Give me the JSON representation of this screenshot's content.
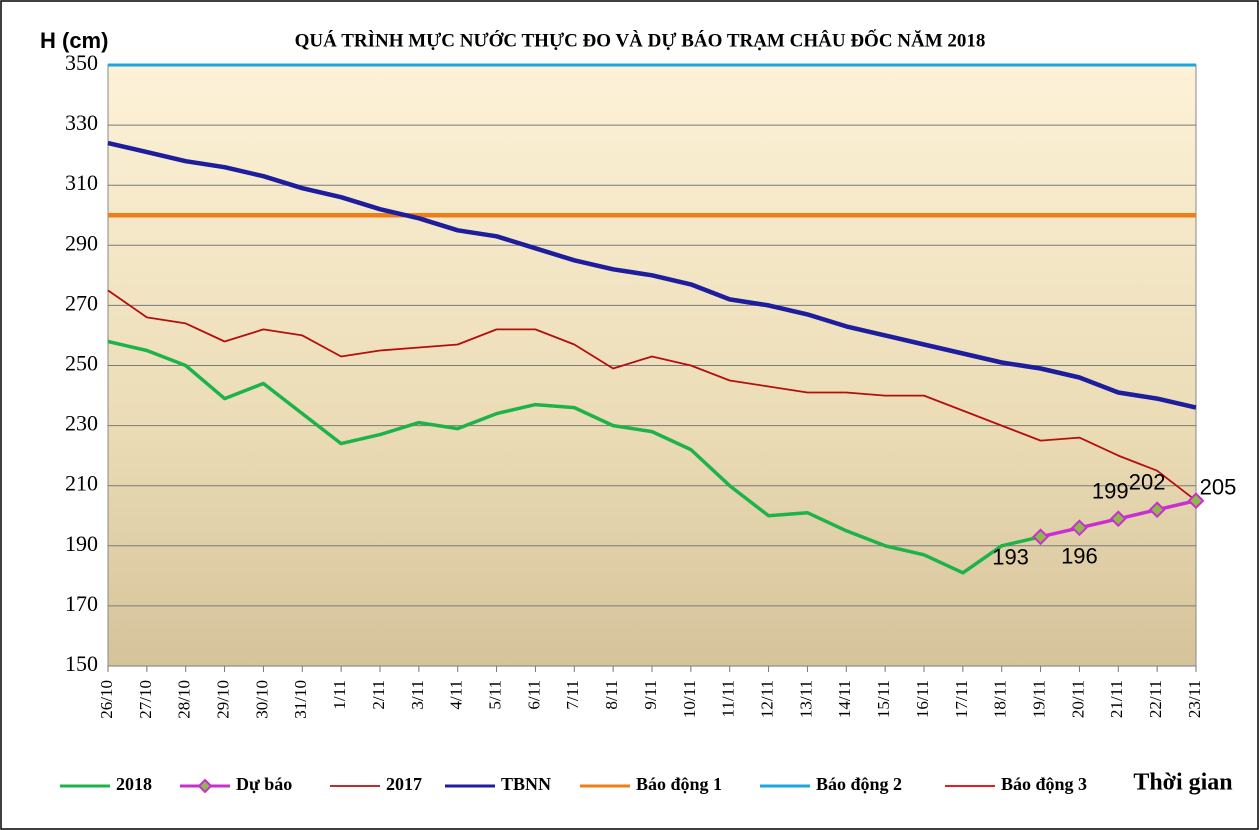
{
  "chart_data": {
    "type": "line",
    "title": "QUÁ TRÌNH MỰC NƯỚC THỰC ĐO VÀ DỰ BÁO TRẠM CHÂU ĐỐC NĂM 2018",
    "y_label": "H (cm)",
    "x_label": "Thời gian",
    "categories": [
      "26/10",
      "27/10",
      "28/10",
      "29/10",
      "30/10",
      "31/10",
      "1/11",
      "2/11",
      "3/11",
      "4/11",
      "5/11",
      "6/11",
      "7/11",
      "8/11",
      "9/11",
      "10/11",
      "11/11",
      "12/11",
      "13/11",
      "14/11",
      "15/11",
      "16/11",
      "17/11",
      "18/11",
      "19/11",
      "20/11",
      "21/11",
      "22/11",
      "23/11"
    ],
    "ylim": [
      150,
      350
    ],
    "yticks": [
      150,
      170,
      190,
      210,
      230,
      250,
      270,
      290,
      310,
      330,
      350
    ],
    "grid": true,
    "legend": "bottom",
    "series": [
      {
        "name": "2018",
        "color": "#1db34a",
        "values": [
          258,
          255,
          250,
          239,
          244,
          234,
          224,
          227,
          231,
          229,
          234,
          237,
          236,
          230,
          228,
          222,
          210,
          200,
          201,
          195,
          190,
          187,
          181,
          190,
          193,
          null,
          null,
          null,
          null
        ]
      },
      {
        "name": "Dự báo",
        "color": "#c82fd0",
        "marker": "diamond",
        "values": [
          null,
          null,
          null,
          null,
          null,
          null,
          null,
          null,
          null,
          null,
          null,
          null,
          null,
          null,
          null,
          null,
          null,
          null,
          null,
          null,
          null,
          null,
          null,
          null,
          193,
          196,
          199,
          202,
          205
        ],
        "data_labels": true
      },
      {
        "name": "2017",
        "color": "#b40f0f",
        "values": [
          275,
          266,
          264,
          258,
          262,
          260,
          253,
          255,
          256,
          257,
          262,
          262,
          257,
          249,
          253,
          250,
          245,
          243,
          241,
          241,
          240,
          240,
          235,
          230,
          225,
          226,
          220,
          215,
          205
        ]
      },
      {
        "name": "TBNN",
        "color": "#1d1d9e",
        "values": [
          324,
          321,
          318,
          316,
          313,
          309,
          306,
          302,
          299,
          295,
          293,
          289,
          285,
          282,
          280,
          277,
          272,
          270,
          267,
          263,
          260,
          257,
          254,
          251,
          249,
          246,
          241,
          239,
          236
        ]
      },
      {
        "name": "Báo động 1",
        "color": "#ef7d1a",
        "values": [
          300,
          300,
          300,
          300,
          300,
          300,
          300,
          300,
          300,
          300,
          300,
          300,
          300,
          300,
          300,
          300,
          300,
          300,
          300,
          300,
          300,
          300,
          300,
          300,
          300,
          300,
          300,
          300,
          300
        ]
      },
      {
        "name": "Báo động 2",
        "color": "#19a7e0",
        "values": [
          350,
          350,
          350,
          350,
          350,
          350,
          350,
          350,
          350,
          350,
          350,
          350,
          350,
          350,
          350,
          350,
          350,
          350,
          350,
          350,
          350,
          350,
          350,
          350,
          350,
          350,
          350,
          350,
          350
        ]
      },
      {
        "name": "Báo động 3",
        "color": "#e02020",
        "values": [
          null,
          null,
          null,
          null,
          null,
          null,
          null,
          null,
          null,
          null,
          null,
          null,
          null,
          null,
          null,
          null,
          null,
          null,
          null,
          null,
          null,
          null,
          null,
          null,
          null,
          null,
          null,
          null,
          null
        ]
      }
    ]
  }
}
